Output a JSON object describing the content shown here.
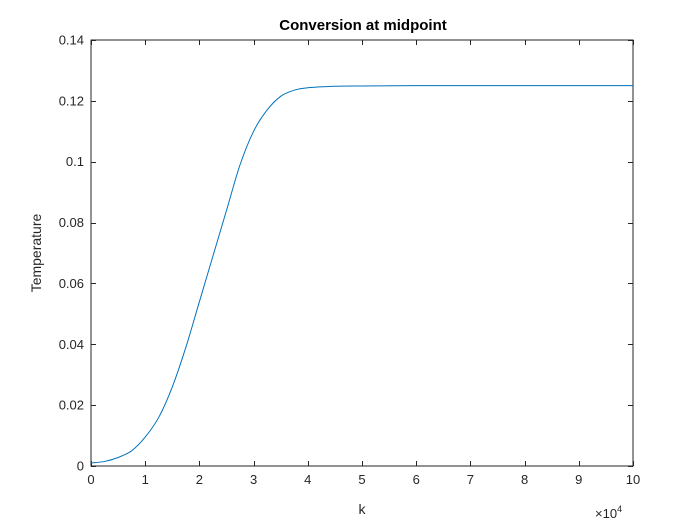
{
  "chart_data": {
    "type": "line",
    "title": "Conversion at midpoint",
    "xlabel": "k",
    "ylabel": "Temperature",
    "x_exponent_prefix": "×10",
    "x_exponent_power": "4",
    "xlim": [
      0,
      10
    ],
    "ylim": [
      0,
      0.14
    ],
    "x_ticks": [
      0,
      1,
      2,
      3,
      4,
      5,
      6,
      7,
      8,
      9,
      10
    ],
    "x_tick_labels": [
      "0",
      "1",
      "2",
      "3",
      "4",
      "5",
      "6",
      "7",
      "8",
      "9",
      "10"
    ],
    "y_ticks": [
      0,
      0.02,
      0.04,
      0.06,
      0.08,
      0.1,
      0.12,
      0.14
    ],
    "y_tick_labels": [
      "0",
      "0.02",
      "0.04",
      "0.06",
      "0.08",
      "0.1",
      "0.12",
      "0.14"
    ],
    "grid": false,
    "line_color": "#0072bd",
    "series": [
      {
        "x": [
          0,
          0.25,
          0.5,
          0.75,
          1.0,
          1.25,
          1.5,
          1.75,
          2.0,
          2.25,
          2.5,
          2.75,
          3.0,
          3.25,
          3.5,
          3.75,
          4.0,
          4.5,
          5.0,
          5.5,
          6.0,
          7.0,
          8.0,
          9.0,
          10.0
        ],
        "y": [
          0.001,
          0.0015,
          0.0028,
          0.005,
          0.0095,
          0.016,
          0.026,
          0.039,
          0.054,
          0.069,
          0.084,
          0.099,
          0.11,
          0.117,
          0.1215,
          0.1235,
          0.1243,
          0.1248,
          0.1249,
          0.12495,
          0.125,
          0.125,
          0.125,
          0.125,
          0.125
        ]
      }
    ]
  }
}
